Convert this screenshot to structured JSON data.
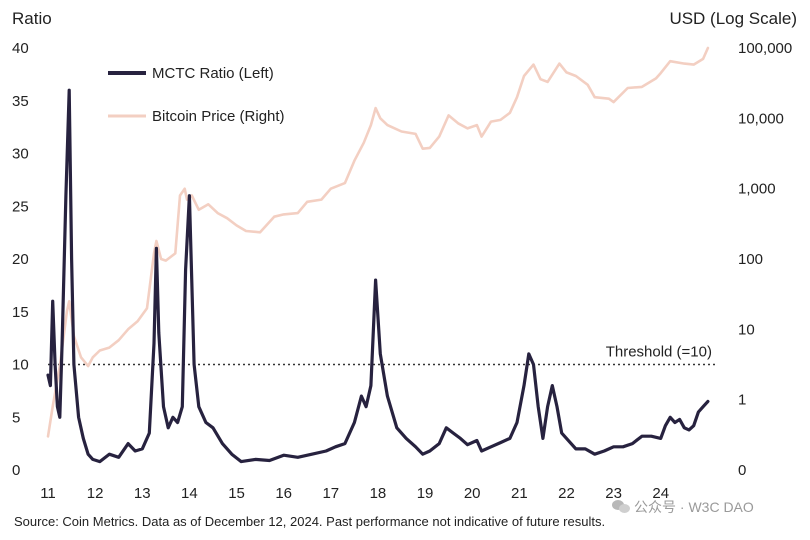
{
  "chart_data": {
    "type": "line",
    "left_axis": {
      "title": "Ratio",
      "ticks": [
        0,
        5,
        10,
        15,
        20,
        25,
        30,
        35,
        40
      ],
      "ylim": [
        0,
        40
      ]
    },
    "right_axis": {
      "title": "USD (Log Scale)",
      "scale": "log",
      "ticks": [
        0.1,
        1,
        10,
        100,
        1000,
        10000,
        100000
      ],
      "tick_labels": [
        "0",
        "1",
        "10",
        "100",
        "1,000",
        "10,000",
        "100,000"
      ],
      "ylim": [
        0.1,
        100000
      ]
    },
    "x_axis": {
      "tick_labels": [
        "11",
        "12",
        "13",
        "14",
        "15",
        "16",
        "17",
        "18",
        "19",
        "20",
        "21",
        "22",
        "23",
        "24"
      ],
      "xlim": [
        2011.0,
        2025.3
      ]
    },
    "threshold": {
      "label": "Threshold (=10)",
      "value": 10
    },
    "legend_placement": "top-left",
    "series": [
      {
        "name": "Bitcoin Price (Right)",
        "axis": "right",
        "color": "#f3cfc2",
        "x": [
          2011.0,
          2011.1,
          2011.25,
          2011.4,
          2011.45,
          2011.55,
          2011.7,
          2011.85,
          2011.95,
          2012.1,
          2012.3,
          2012.5,
          2012.7,
          2012.9,
          2013.1,
          2013.25,
          2013.3,
          2013.4,
          2013.5,
          2013.7,
          2013.8,
          2013.9,
          2013.95,
          2014.05,
          2014.2,
          2014.4,
          2014.6,
          2014.8,
          2015.0,
          2015.2,
          2015.5,
          2015.8,
          2016.0,
          2016.3,
          2016.5,
          2016.8,
          2017.0,
          2017.3,
          2017.5,
          2017.7,
          2017.85,
          2017.95,
          2018.05,
          2018.2,
          2018.5,
          2018.8,
          2018.95,
          2019.1,
          2019.3,
          2019.5,
          2019.7,
          2019.9,
          2020.1,
          2020.2,
          2020.4,
          2020.6,
          2020.8,
          2020.95,
          2021.1,
          2021.3,
          2021.45,
          2021.6,
          2021.85,
          2022.0,
          2022.2,
          2022.45,
          2022.6,
          2022.9,
          2023.0,
          2023.3,
          2023.6,
          2023.9,
          2024.0,
          2024.2,
          2024.5,
          2024.7,
          2024.9,
          2025.0
        ],
        "y": [
          0.3,
          0.8,
          3,
          18,
          25,
          8,
          4,
          3,
          4,
          5,
          5.5,
          7,
          10,
          13,
          20,
          120,
          180,
          100,
          95,
          120,
          800,
          1000,
          700,
          800,
          500,
          600,
          450,
          380,
          300,
          250,
          240,
          400,
          430,
          450,
          650,
          700,
          1000,
          1200,
          2500,
          4500,
          8000,
          14000,
          10000,
          8000,
          6500,
          6000,
          3700,
          3800,
          5500,
          11000,
          8500,
          7200,
          8000,
          5500,
          9000,
          9500,
          12000,
          20000,
          40000,
          58000,
          36000,
          33000,
          60000,
          45000,
          40000,
          30000,
          20000,
          19000,
          17000,
          27000,
          28000,
          37000,
          44000,
          65000,
          60000,
          58000,
          70000,
          100000
        ]
      },
      {
        "name": "MCTC Ratio (Left)",
        "axis": "left",
        "color": "#27223f",
        "x": [
          2011.0,
          2011.05,
          2011.1,
          2011.15,
          2011.2,
          2011.25,
          2011.3,
          2011.38,
          2011.45,
          2011.5,
          2011.55,
          2011.65,
          2011.75,
          2011.85,
          2011.95,
          2012.1,
          2012.3,
          2012.5,
          2012.7,
          2012.85,
          2013.0,
          2013.15,
          2013.25,
          2013.3,
          2013.35,
          2013.45,
          2013.55,
          2013.65,
          2013.75,
          2013.85,
          2013.92,
          2014.0,
          2014.1,
          2014.2,
          2014.35,
          2014.5,
          2014.7,
          2014.9,
          2015.1,
          2015.4,
          2015.7,
          2016.0,
          2016.3,
          2016.6,
          2016.9,
          2017.1,
          2017.3,
          2017.5,
          2017.65,
          2017.75,
          2017.85,
          2017.95,
          2018.05,
          2018.2,
          2018.4,
          2018.6,
          2018.8,
          2018.95,
          2019.1,
          2019.3,
          2019.45,
          2019.6,
          2019.75,
          2019.9,
          2020.1,
          2020.2,
          2020.4,
          2020.6,
          2020.8,
          2020.95,
          2021.1,
          2021.2,
          2021.3,
          2021.4,
          2021.5,
          2021.6,
          2021.7,
          2021.8,
          2021.9,
          2022.0,
          2022.2,
          2022.4,
          2022.6,
          2022.8,
          2023.0,
          2023.2,
          2023.4,
          2023.6,
          2023.8,
          2024.0,
          2024.1,
          2024.2,
          2024.3,
          2024.4,
          2024.5,
          2024.6,
          2024.7,
          2024.8,
          2024.9,
          2025.0
        ],
        "y": [
          9,
          8,
          16,
          10,
          6,
          5,
          12,
          26,
          36,
          20,
          10,
          5,
          3,
          1.5,
          1,
          0.8,
          1.5,
          1.2,
          2.5,
          1.8,
          2,
          3.5,
          12,
          21,
          13,
          6,
          4,
          5,
          4.5,
          6,
          19,
          26,
          10,
          6,
          4.5,
          4,
          2.5,
          1.5,
          0.8,
          1,
          0.9,
          1.4,
          1.2,
          1.5,
          1.8,
          2.2,
          2.5,
          4.5,
          7,
          6,
          8,
          18,
          11,
          7,
          4,
          3,
          2.2,
          1.5,
          1.8,
          2.5,
          4,
          3.5,
          3,
          2.4,
          2.8,
          1.8,
          2.2,
          2.6,
          3,
          4.5,
          8,
          11,
          10,
          6,
          3,
          6,
          8,
          6,
          3.5,
          3,
          2,
          2,
          1.5,
          1.8,
          2.2,
          2.2,
          2.5,
          3.2,
          3.2,
          3,
          4.2,
          5,
          4.5,
          4.8,
          4,
          3.8,
          4.2,
          5.5,
          6,
          6.5
        ]
      }
    ]
  },
  "footer": {
    "source": "Source: Coin Metrics. Data as of December 12, 2024. Past performance not indicative of future results.",
    "watermark": "公众号 · W3C DAO"
  }
}
